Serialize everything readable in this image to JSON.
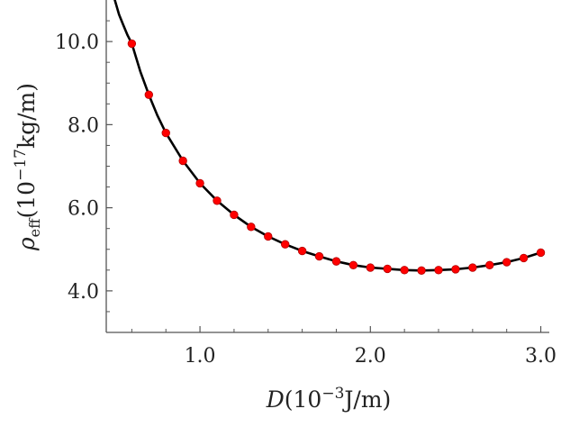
{
  "chart_data": {
    "type": "scatter",
    "title": "",
    "xlabel": {
      "prefix": "D",
      "open": "(10",
      "sup": "−3",
      "unit": "J/m)"
    },
    "ylabel": {
      "symbol": "ρ",
      "sub": "eff",
      "open": "(10",
      "sup": "−17",
      "unit": "kg/m)"
    },
    "xlim": [
      0.45,
      3.05
    ],
    "ylim": [
      3.0,
      11.0
    ],
    "x_ticks": [
      {
        "value": 1.0,
        "label": "1.0"
      },
      {
        "value": 2.0,
        "label": "2.0"
      },
      {
        "value": 3.0,
        "label": "3.0"
      }
    ],
    "y_ticks": [
      {
        "value": 4.0,
        "label": "4.0"
      },
      {
        "value": 6.0,
        "label": "6.0"
      },
      {
        "value": 8.0,
        "label": "8.0"
      },
      {
        "value": 10.0,
        "label": "10.0"
      }
    ],
    "colors": {
      "points": "#ff0000",
      "points_edge": "#b30000",
      "curve": "#000000",
      "axis": "#555555"
    },
    "series": [
      {
        "kind": "points",
        "x": [
          0.6,
          0.7,
          0.8,
          0.9,
          1.0,
          1.1,
          1.2,
          1.3,
          1.4,
          1.5,
          1.6,
          1.7,
          1.8,
          1.9,
          2.0,
          2.1,
          2.2,
          2.3,
          2.4,
          2.5,
          2.6,
          2.7,
          2.8,
          2.9,
          3.0
        ],
        "y": [
          9.95,
          8.72,
          7.8,
          7.13,
          6.59,
          6.17,
          5.83,
          5.54,
          5.31,
          5.12,
          4.96,
          4.83,
          4.71,
          4.62,
          4.56,
          4.53,
          4.5,
          4.49,
          4.5,
          4.52,
          4.56,
          4.62,
          4.69,
          4.79,
          4.92
        ]
      },
      {
        "kind": "curve",
        "x": [
          0.5,
          0.525,
          0.55,
          0.575,
          0.6,
          0.65,
          0.7,
          0.75,
          0.8,
          0.9,
          1.0,
          1.1,
          1.2,
          1.3,
          1.4,
          1.5,
          1.6,
          1.7,
          1.8,
          1.9,
          2.0,
          2.1,
          2.2,
          2.3,
          2.4,
          2.5,
          2.6,
          2.7,
          2.8,
          2.9,
          3.0
        ],
        "y": [
          11.0,
          10.65,
          10.4,
          10.15,
          9.95,
          9.28,
          8.72,
          8.22,
          7.8,
          7.13,
          6.59,
          6.17,
          5.83,
          5.54,
          5.31,
          5.12,
          4.96,
          4.83,
          4.71,
          4.62,
          4.56,
          4.53,
          4.5,
          4.49,
          4.5,
          4.52,
          4.56,
          4.62,
          4.69,
          4.79,
          4.92
        ]
      }
    ]
  }
}
